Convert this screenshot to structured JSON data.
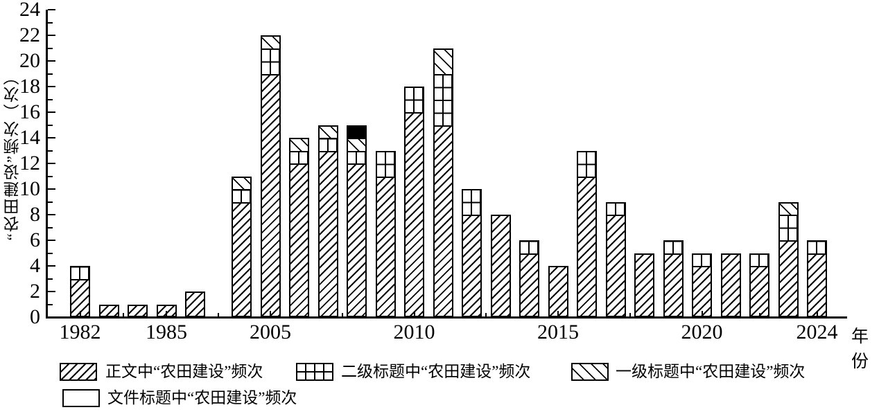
{
  "chart_data": {
    "type": "bar",
    "stacked": true,
    "title": "",
    "xlabel": "年份",
    "ylabel": "“农田建设”频次（次）",
    "ylim": [
      0,
      24
    ],
    "ytick_step": 2,
    "yminor_step": 1,
    "grid": false,
    "legend_position": "bottom",
    "categories": [
      1982,
      1983,
      1984,
      1985,
      1986,
      2004,
      2005,
      2006,
      2007,
      2008,
      2009,
      2010,
      2011,
      2012,
      2013,
      2014,
      2015,
      2016,
      2017,
      2018,
      2019,
      2020,
      2021,
      2022,
      2023,
      2024
    ],
    "x_labeled_years": [
      1982,
      1985,
      2005,
      2010,
      2015,
      2020,
      2024
    ],
    "series": [
      {
        "name": "正文中“农田建设”频次",
        "pattern": "diagonal-forward",
        "values": [
          3,
          1,
          1,
          1,
          2,
          9,
          19,
          12,
          13,
          12,
          11,
          16,
          15,
          8,
          8,
          5,
          4,
          11,
          8,
          5,
          5,
          4,
          5,
          4,
          6,
          5
        ]
      },
      {
        "name": "二级标题中“农田建设”频次",
        "pattern": "grid",
        "values": [
          1,
          0,
          0,
          0,
          0,
          1,
          2,
          1,
          1,
          1,
          2,
          2,
          4,
          2,
          0,
          1,
          0,
          2,
          1,
          0,
          1,
          1,
          0,
          1,
          2,
          1
        ]
      },
      {
        "name": "一级标题中“农田建设”频次",
        "pattern": "diagonal-back",
        "values": [
          0,
          0,
          0,
          0,
          0,
          1,
          1,
          1,
          1,
          1,
          0,
          0,
          2,
          0,
          0,
          0,
          0,
          0,
          0,
          0,
          0,
          0,
          0,
          0,
          1,
          0
        ]
      },
      {
        "name": "文件标题中“农田建设”频次",
        "pattern": "solid-black",
        "values": [
          0,
          0,
          0,
          0,
          0,
          0,
          0,
          0,
          0,
          1,
          0,
          0,
          0,
          0,
          0,
          0,
          0,
          0,
          0,
          0,
          0,
          0,
          0,
          0,
          0,
          0
        ]
      }
    ],
    "totals": [
      4,
      1,
      1,
      1,
      2,
      11,
      22,
      14,
      15,
      15,
      13,
      18,
      21,
      10,
      8,
      6,
      4,
      13,
      9,
      5,
      6,
      5,
      5,
      5,
      9,
      6
    ],
    "colors": {
      "ink": "#000000",
      "background": "#ffffff"
    }
  },
  "legend": {
    "items": [
      {
        "label": "正文中“农田建设”频次",
        "pattern": "diagonal-forward"
      },
      {
        "label": "二级标题中“农田建设”频次",
        "pattern": "grid"
      },
      {
        "label": "一级标题中“农田建设”频次",
        "pattern": "diagonal-back"
      },
      {
        "label": "文件标题中“农田建设”频次",
        "pattern": "solid-black"
      }
    ]
  }
}
